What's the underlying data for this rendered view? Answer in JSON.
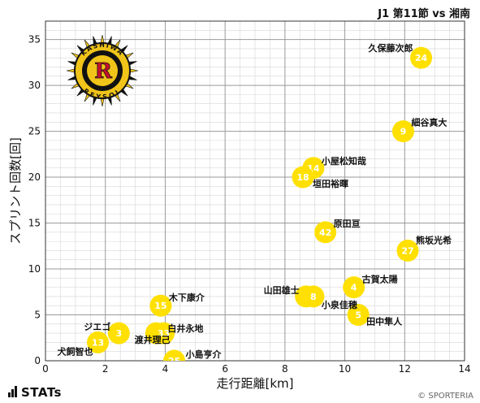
{
  "header": {
    "match": "J1 第11節 vs 湘南"
  },
  "footer": {
    "logo_text": "STATs",
    "copyright": "© SPORTERIA"
  },
  "logo": {
    "top_text": "KASHIWA",
    "bottom_text": "REYSOL",
    "letter": "R",
    "colors": {
      "gold": "#f0c419",
      "black": "#111111",
      "red": "#c8102e"
    }
  },
  "colors": {
    "point": "#ffe000",
    "grid": "#9a9a9a",
    "grid_minor": "#d6d6d6"
  },
  "chart_data": {
    "type": "scatter",
    "title": "",
    "xlabel": "走行距離[km]",
    "ylabel": "スプリント回数[回]",
    "xlim": [
      0,
      14
    ],
    "ylim": [
      0,
      37
    ],
    "xticks": [
      0,
      2,
      4,
      6,
      8,
      10,
      12,
      14
    ],
    "yticks": [
      0,
      5,
      10,
      15,
      20,
      25,
      30,
      35
    ],
    "grid": true,
    "points": [
      {
        "number": "24",
        "name": "久保藤次郎",
        "x": 12.55,
        "y": 33.0
      },
      {
        "number": "9",
        "name": "細谷真大",
        "x": 11.95,
        "y": 25.0
      },
      {
        "number": "14",
        "name": "小屋松知哉",
        "x": 8.95,
        "y": 21.0
      },
      {
        "number": "18",
        "name": "垣田裕暉",
        "x": 8.6,
        "y": 20.0
      },
      {
        "number": "42",
        "name": "原田亘",
        "x": 9.35,
        "y": 14.0
      },
      {
        "number": "27",
        "name": "熊坂光希",
        "x": 12.1,
        "y": 12.0
      },
      {
        "number": "4",
        "name": "古賀太陽",
        "x": 10.3,
        "y": 8.0
      },
      {
        "number": "6",
        "name": "山田雄士",
        "x": 8.7,
        "y": 7.0
      },
      {
        "number": "8",
        "name": "小泉佳穂",
        "x": 8.95,
        "y": 7.0
      },
      {
        "number": "5",
        "name": "田中隼人",
        "x": 10.45,
        "y": 5.0
      },
      {
        "number": "15",
        "name": "木下康介",
        "x": 3.85,
        "y": 6.0
      },
      {
        "number": "3",
        "name": "ジエゴ",
        "x": 2.45,
        "y": 3.0
      },
      {
        "number": "13",
        "name": "犬飼智也",
        "x": 1.75,
        "y": 2.0
      },
      {
        "number": "2",
        "name": "白井永地",
        "x": 3.7,
        "y": 3.0
      },
      {
        "number": "33",
        "name": "渡井理己",
        "x": 3.95,
        "y": 3.0
      },
      {
        "number": "25",
        "name": "小島亨介",
        "x": 4.3,
        "y": 0.0
      }
    ]
  }
}
